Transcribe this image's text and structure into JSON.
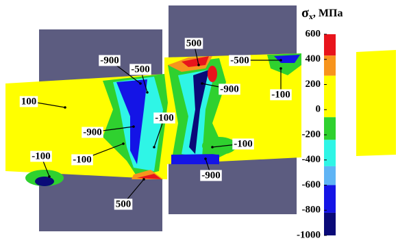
{
  "colorbar": {
    "title": {
      "symbol": "σ",
      "subscript": "x",
      "unit": ", МПа"
    },
    "ticks": [
      600,
      400,
      200,
      0,
      -200,
      -400,
      -600,
      -800,
      -1000
    ],
    "lim": [
      600,
      -1000
    ],
    "bands": [
      {
        "from": 600,
        "to": 430,
        "color": "#e8141c"
      },
      {
        "from": 430,
        "to": 270,
        "color": "#f7941d"
      },
      {
        "from": 270,
        "to": -60,
        "color": "#ffff00"
      },
      {
        "from": -60,
        "to": -240,
        "color": "#2fd12f"
      },
      {
        "from": -240,
        "to": -450,
        "color": "#2ff5e6"
      },
      {
        "from": -450,
        "to": -600,
        "color": "#5fb4f5"
      },
      {
        "from": -600,
        "to": -820,
        "color": "#1414e6"
      },
      {
        "from": -820,
        "to": -1000,
        "color": "#0a0a78"
      }
    ]
  },
  "annotations": [
    100,
    -900,
    -500,
    -900,
    -100,
    -100,
    -100,
    500,
    500,
    -500,
    -900,
    -100,
    -100,
    -900
  ]
}
